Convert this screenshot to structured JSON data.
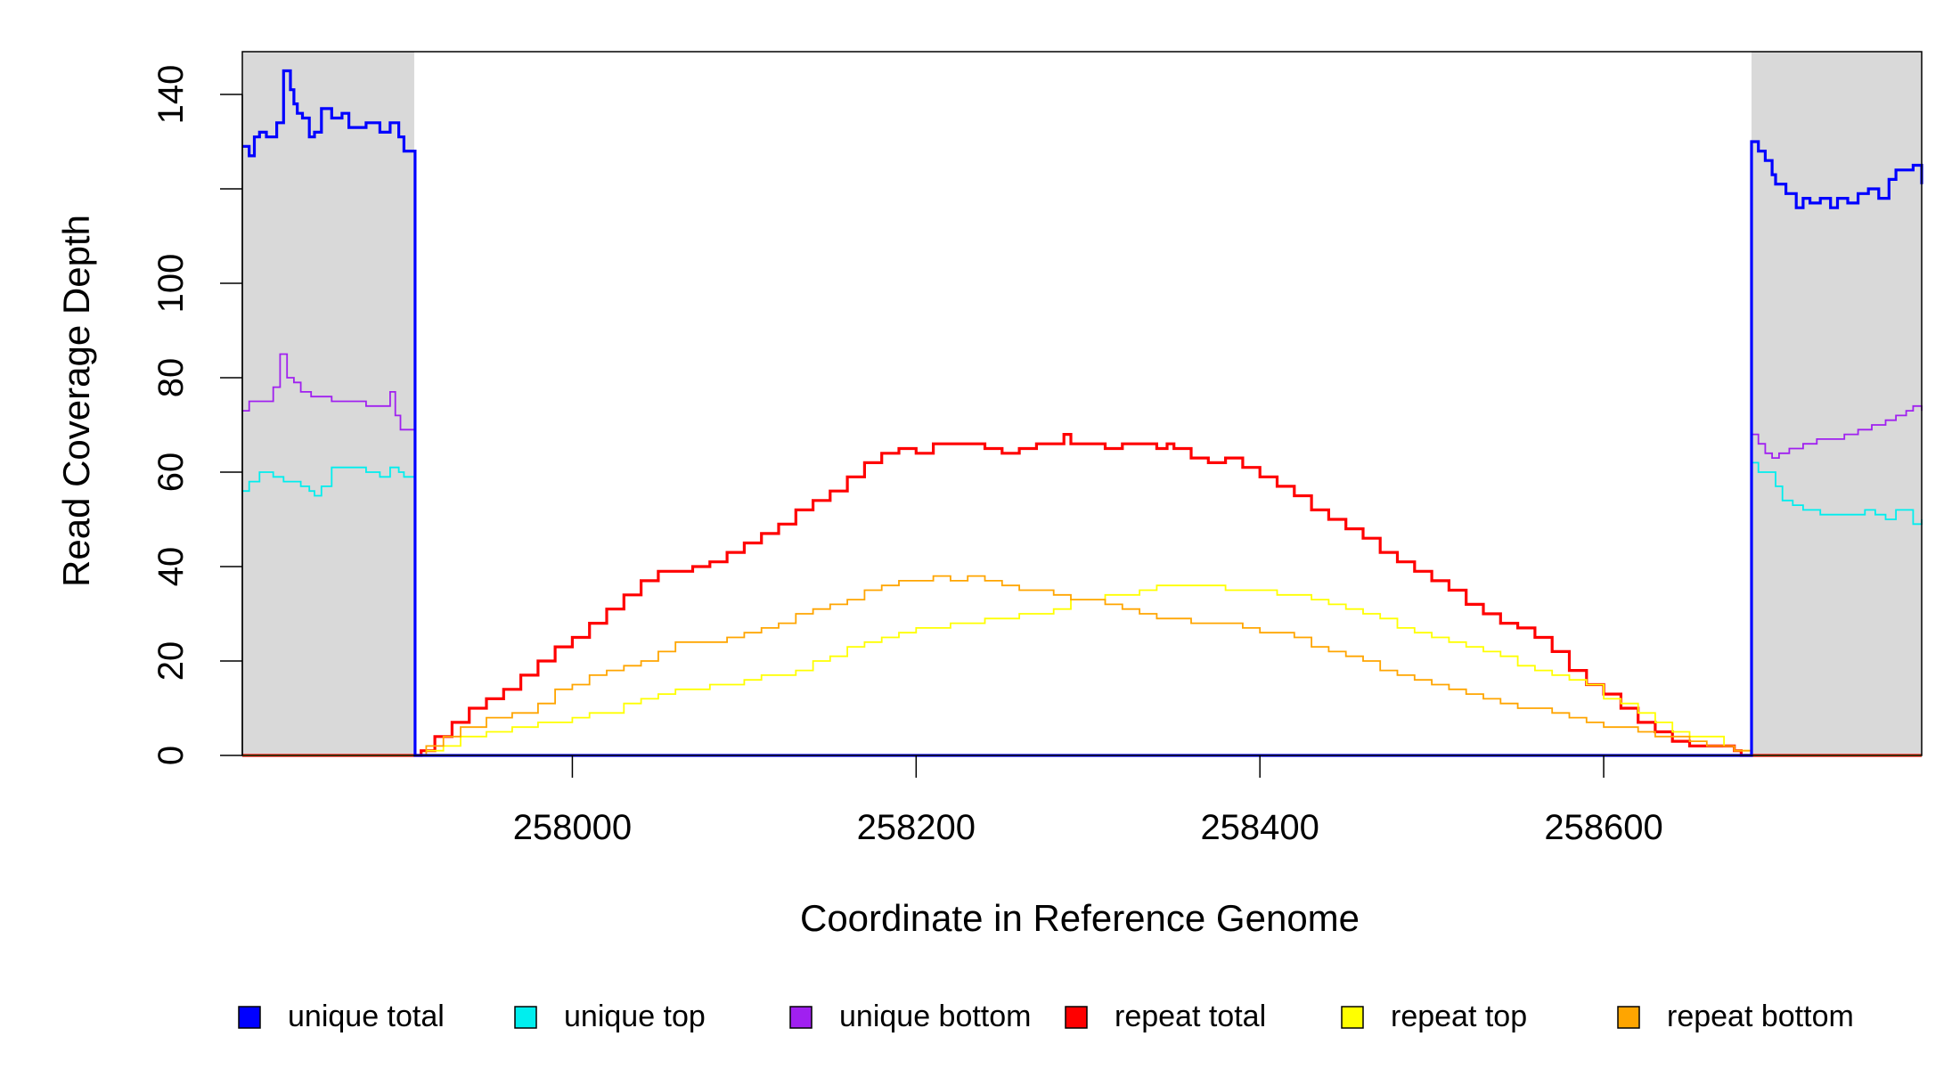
{
  "chart_data": {
    "type": "line",
    "title": "",
    "xlabel": "Coordinate in Reference Genome",
    "ylabel": "Read Coverage Depth",
    "xlim": [
      257808,
      258785
    ],
    "ylim": [
      0,
      150
    ],
    "x_ticks": [
      258000,
      258200,
      258400,
      258600
    ],
    "x_tick_labels": [
      "258000",
      "258200",
      "258400",
      "258600"
    ],
    "y_ticks": [
      0,
      20,
      40,
      60,
      80,
      100,
      120,
      140
    ],
    "y_tick_labels": [
      "0",
      "20",
      "40",
      "60",
      "80",
      "100",
      "",
      "140"
    ],
    "shaded_regions": [
      {
        "x": [
          257808,
          257908
        ],
        "color": "#d9d9d9"
      },
      {
        "x": [
          258686,
          258785
        ],
        "color": "#d9d9d9"
      }
    ],
    "legend_position": "bottom",
    "series": [
      {
        "name": "unique total",
        "color": "#0000ff",
        "x": [
          257808,
          257812,
          257815,
          257818,
          257822,
          257828,
          257832,
          257836,
          257838,
          257840,
          257843,
          257847,
          257850,
          257854,
          257860,
          257866,
          257870,
          257880,
          257888,
          257894,
          257899,
          257902,
          257908,
          257908.5,
          258684,
          258686,
          258688,
          258690,
          258694,
          258698,
          258700,
          258706,
          258712,
          258716,
          258720,
          258726,
          258732,
          258736,
          258742,
          258748,
          258754,
          258760,
          258766,
          258770,
          258774,
          258780,
          258785
        ],
        "y": [
          129,
          127,
          131,
          132,
          131,
          134,
          145,
          141,
          138,
          136,
          135,
          131,
          132,
          137,
          135,
          136,
          133,
          134,
          132,
          134,
          131,
          128,
          128,
          0,
          0,
          130,
          130,
          128,
          126,
          123,
          121,
          119,
          116,
          118,
          117,
          118,
          116,
          118,
          117,
          119,
          120,
          118,
          122,
          124,
          124,
          125,
          121
        ]
      },
      {
        "name": "unique top",
        "color": "#00eeee",
        "x": [
          257808,
          257812,
          257818,
          257826,
          257832,
          257838,
          257842,
          257847,
          257850,
          257854,
          257860,
          257870,
          257880,
          257888,
          257894,
          257899,
          257902,
          257908,
          257908.5,
          258684,
          258686,
          258690,
          258696,
          258700,
          258704,
          258710,
          258716,
          258720,
          258726,
          258734,
          258740,
          258746,
          258752,
          258758,
          258764,
          258770,
          258776,
          258780,
          258785
        ],
        "y": [
          56,
          58,
          60,
          59,
          58,
          58,
          57,
          56,
          55,
          57,
          61,
          61,
          60,
          59,
          61,
          60,
          59,
          59,
          0,
          0,
          62,
          60,
          60,
          57,
          54,
          53,
          52,
          52,
          51,
          51,
          51,
          51,
          52,
          51,
          50,
          52,
          52,
          49,
          50
        ]
      },
      {
        "name": "unique bottom",
        "color": "#a020f0",
        "x": [
          257808,
          257812,
          257818,
          257826,
          257830,
          257834,
          257838,
          257842,
          257848,
          257854,
          257860,
          257866,
          257872,
          257880,
          257888,
          257894,
          257897,
          257900,
          257908,
          257908.5,
          258684,
          258686,
          258690,
          258694,
          258698,
          258702,
          258708,
          258716,
          258724,
          258732,
          258740,
          258748,
          258756,
          258764,
          258770,
          258776,
          258780,
          258785
        ],
        "y": [
          73,
          75,
          75,
          78,
          85,
          80,
          79,
          77,
          76,
          76,
          75,
          75,
          75,
          74,
          74,
          77,
          72,
          69,
          69,
          0,
          0,
          68,
          66,
          64,
          63,
          64,
          65,
          66,
          67,
          67,
          68,
          69,
          70,
          71,
          72,
          73,
          74,
          73
        ]
      },
      {
        "name": "repeat total",
        "color": "#ff0000",
        "x": [
          257808,
          257908,
          257912,
          257920,
          257930,
          257940,
          257950,
          257960,
          257970,
          257980,
          257990,
          258000,
          258010,
          258020,
          258030,
          258040,
          258050,
          258060,
          258070,
          258080,
          258090,
          258100,
          258110,
          258120,
          258130,
          258140,
          258150,
          258160,
          258170,
          258180,
          258190,
          258200,
          258210,
          258220,
          258230,
          258240,
          258250,
          258260,
          258270,
          258280,
          258286,
          258290,
          258300,
          258310,
          258320,
          258330,
          258340,
          258346,
          258350,
          258360,
          258370,
          258380,
          258390,
          258400,
          258410,
          258420,
          258430,
          258440,
          258450,
          258460,
          258470,
          258480,
          258490,
          258500,
          258510,
          258520,
          258530,
          258540,
          258550,
          258560,
          258570,
          258580,
          258590,
          258600,
          258610,
          258620,
          258630,
          258640,
          258650,
          258660,
          258670,
          258676,
          258680,
          258686,
          258785
        ],
        "y": [
          0,
          0,
          1,
          4,
          7,
          10,
          12,
          14,
          17,
          20,
          23,
          25,
          28,
          31,
          34,
          37,
          39,
          39,
          40,
          41,
          43,
          45,
          47,
          49,
          52,
          54,
          56,
          59,
          62,
          64,
          65,
          64,
          66,
          66,
          66,
          65,
          64,
          65,
          66,
          66,
          68,
          66,
          66,
          65,
          66,
          66,
          65,
          66,
          65,
          63,
          62,
          63,
          61,
          59,
          57,
          55,
          52,
          50,
          48,
          46,
          43,
          41,
          39,
          37,
          35,
          32,
          30,
          28,
          27,
          25,
          22,
          18,
          15,
          13,
          10,
          7,
          5,
          3,
          2,
          2,
          2,
          1,
          0,
          0,
          0
        ]
      },
      {
        "name": "repeat top",
        "color": "#ffff00",
        "x": [
          257808,
          257908,
          257915,
          257925,
          257935,
          257950,
          257965,
          257980,
          257995,
          258000,
          258010,
          258020,
          258030,
          258040,
          258050,
          258060,
          258070,
          258080,
          258090,
          258100,
          258110,
          258120,
          258130,
          258140,
          258150,
          258160,
          258170,
          258180,
          258190,
          258200,
          258210,
          258220,
          258230,
          258240,
          258250,
          258260,
          258270,
          258280,
          258290,
          258300,
          258310,
          258320,
          258330,
          258340,
          258350,
          258360,
          258370,
          258380,
          258390,
          258400,
          258410,
          258420,
          258430,
          258440,
          258450,
          258460,
          258470,
          258480,
          258490,
          258500,
          258510,
          258520,
          258530,
          258540,
          258550,
          258560,
          258570,
          258580,
          258590,
          258600,
          258610,
          258620,
          258630,
          258640,
          258650,
          258660,
          258670,
          258676,
          258680,
          258686,
          258785
        ],
        "y": [
          0,
          0,
          1,
          2,
          4,
          5,
          6,
          7,
          7,
          8,
          9,
          9,
          11,
          12,
          13,
          14,
          14,
          15,
          15,
          16,
          17,
          17,
          18,
          20,
          21,
          23,
          24,
          25,
          26,
          27,
          27,
          28,
          28,
          29,
          29,
          30,
          30,
          31,
          33,
          33,
          34,
          34,
          35,
          36,
          36,
          36,
          36,
          35,
          35,
          35,
          34,
          34,
          33,
          32,
          31,
          30,
          29,
          27,
          26,
          25,
          24,
          23,
          22,
          21,
          19,
          18,
          17,
          16,
          15,
          12,
          11,
          9,
          7,
          5,
          4,
          4,
          2,
          1,
          1,
          0,
          0
        ]
      },
      {
        "name": "repeat bottom",
        "color": "#ffa500",
        "x": [
          257808,
          257908,
          257915,
          257925,
          257935,
          257950,
          257965,
          257980,
          257990,
          258000,
          258010,
          258020,
          258030,
          258040,
          258050,
          258060,
          258070,
          258080,
          258090,
          258100,
          258110,
          258120,
          258130,
          258140,
          258150,
          258160,
          258170,
          258180,
          258190,
          258200,
          258210,
          258220,
          258230,
          258240,
          258250,
          258260,
          258270,
          258280,
          258290,
          258300,
          258310,
          258320,
          258330,
          258340,
          258350,
          258360,
          258370,
          258380,
          258390,
          258400,
          258410,
          258420,
          258430,
          258440,
          258450,
          258460,
          258470,
          258480,
          258490,
          258500,
          258510,
          258520,
          258530,
          258540,
          258550,
          258560,
          258570,
          258580,
          258590,
          258600,
          258610,
          258620,
          258630,
          258640,
          258650,
          258660,
          258670,
          258676,
          258680,
          258686,
          258785
        ],
        "y": [
          0,
          0,
          2,
          4,
          6,
          8,
          9,
          11,
          14,
          15,
          17,
          18,
          19,
          20,
          22,
          24,
          24,
          24,
          25,
          26,
          27,
          28,
          30,
          31,
          32,
          33,
          35,
          36,
          37,
          37,
          38,
          37,
          38,
          37,
          36,
          35,
          35,
          34,
          33,
          33,
          32,
          31,
          30,
          29,
          29,
          28,
          28,
          28,
          27,
          26,
          26,
          25,
          23,
          22,
          21,
          20,
          18,
          17,
          16,
          15,
          14,
          13,
          12,
          11,
          10,
          10,
          9,
          8,
          7,
          6,
          6,
          5,
          4,
          4,
          3,
          2,
          2,
          1,
          1,
          0,
          0
        ]
      }
    ]
  }
}
